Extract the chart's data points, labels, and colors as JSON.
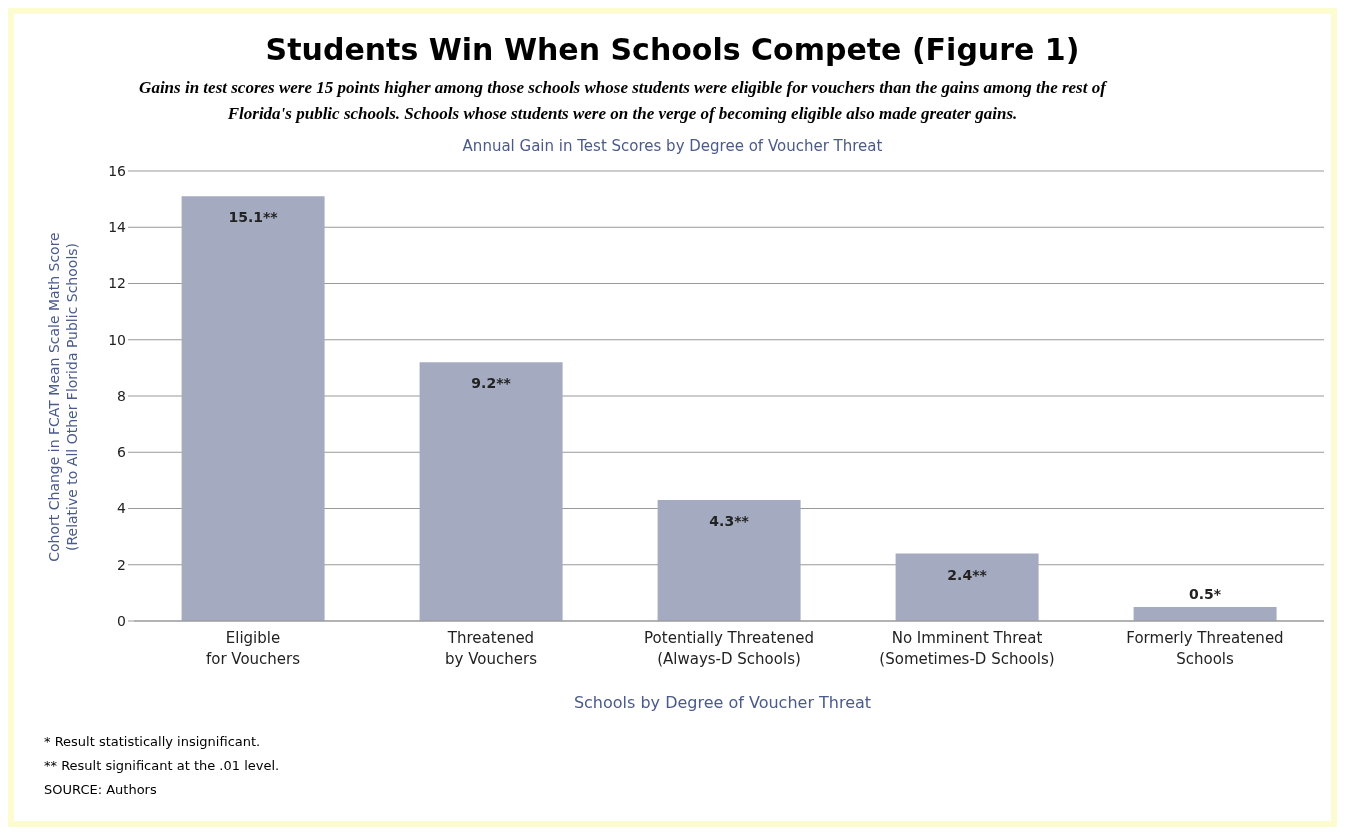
{
  "chart_data": {
    "type": "bar",
    "title": "Students Win When Schools Compete (Figure 1)",
    "subtitle": "Gains in test scores were 15 points higher among those schools whose students were eligible for vouchers than the gains among the rest of Florida's public schools. Schools whose students were on the verge of becoming eligible also made greater gains.",
    "categories": [
      "Eligible\nfor Vouchers",
      "Threatened\nby Vouchers",
      "Potentially Threatened\n(Always-D Schools)",
      "No Imminent Threat\n(Sometimes-D Schools)",
      "Formerly Threatened\nSchools"
    ],
    "values": [
      15.1,
      9.2,
      4.3,
      2.4,
      0.5
    ],
    "value_labels": [
      "15.1**",
      "9.2**",
      "4.3**",
      "2.4**",
      "0.5*"
    ],
    "color": "#a4aabf",
    "ylim": [
      0,
      16
    ],
    "yticks": [
      0,
      2,
      4,
      6,
      8,
      10,
      12,
      14,
      16
    ],
    "grid": "y",
    "xlabel": "Schools by Degree of Voucher Threat",
    "ylabel": "Cohort Change in FCAT Mean Scale Math Score\n(Relative to All Other Florida Public Schools)",
    "annotations": [
      "Annual Gain in Test Scores by Degree of Voucher Threat",
      "* Result statistically insignificant.",
      "** Result significant at the .01 level.",
      "SOURCE: Authors"
    ]
  }
}
